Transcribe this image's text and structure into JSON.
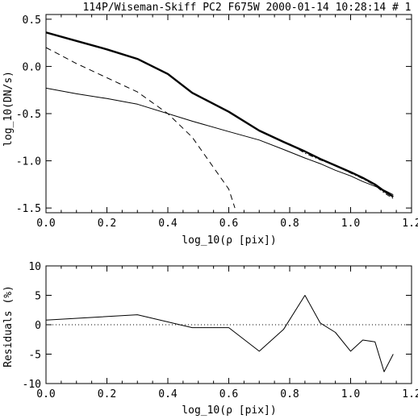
{
  "chart_data": [
    {
      "type": "line",
      "title": "114P/Wiseman-Skiff PC2 F675W 2000-01-14 10:28:14 # 1",
      "xlabel": "log_10(ρ [pix])",
      "ylabel": "log_10(DN/s)",
      "xlim": [
        0.0,
        1.2
      ],
      "ylim": [
        -1.55,
        0.55
      ],
      "xticks": [
        0.0,
        0.2,
        0.4,
        0.6,
        0.8,
        1.0,
        1.2
      ],
      "xtick_labels": [
        "0.0",
        "0.2",
        "0.4",
        "0.6",
        "0.8",
        "1.0",
        "1.2"
      ],
      "yticks": [
        -1.5,
        -1.0,
        -0.5,
        0.0,
        0.5
      ],
      "ytick_labels": [
        "-1.5",
        "-1.0",
        "-0.5",
        "0.0",
        "0.5"
      ],
      "grid": false,
      "series": [
        {
          "style": "thick-solid",
          "x": [
            0.0,
            0.1,
            0.2,
            0.3,
            0.4,
            0.48,
            0.6,
            0.7,
            0.78,
            0.85,
            0.9,
            0.95,
            1.0,
            1.04,
            1.08,
            1.11,
            1.14
          ],
          "y": [
            0.36,
            0.27,
            0.18,
            0.08,
            -0.08,
            -0.28,
            -0.48,
            -0.68,
            -0.8,
            -0.9,
            -0.98,
            -1.05,
            -1.12,
            -1.18,
            -1.25,
            -1.32,
            -1.38
          ]
        },
        {
          "style": "dashed",
          "x": [
            0.0,
            0.1,
            0.2,
            0.3,
            0.4,
            0.48,
            0.6,
            0.62
          ],
          "y": [
            0.2,
            0.03,
            -0.12,
            -0.27,
            -0.5,
            -0.75,
            -1.3,
            -1.5
          ]
        },
        {
          "style": "thin-solid",
          "x": [
            0.0,
            0.1,
            0.2,
            0.3,
            0.48,
            0.6,
            0.7,
            0.78,
            0.85,
            0.9,
            0.95,
            1.0,
            1.04,
            1.08,
            1.11,
            1.14
          ],
          "y": [
            -0.23,
            -0.29,
            -0.34,
            -0.4,
            -0.58,
            -0.69,
            -0.78,
            -0.88,
            -0.97,
            -1.03,
            -1.1,
            -1.16,
            -1.22,
            -1.27,
            -1.31,
            -1.36
          ]
        },
        {
          "style": "dash-dot",
          "x": [
            0.8,
            0.85,
            0.9,
            0.95,
            1.0,
            1.04,
            1.08,
            1.11,
            1.14
          ],
          "y": [
            -0.82,
            -0.92,
            -0.99,
            -1.05,
            -1.13,
            -1.19,
            -1.26,
            -1.34,
            -1.4
          ]
        }
      ]
    },
    {
      "type": "line",
      "title": "",
      "xlabel": "log_10(ρ [pix])",
      "ylabel": "Residuals (%)",
      "xlim": [
        0.0,
        1.2
      ],
      "ylim": [
        -10,
        10
      ],
      "xticks": [
        0.0,
        0.2,
        0.4,
        0.6,
        0.8,
        1.0,
        1.2
      ],
      "xtick_labels": [
        "0.0",
        "0.2",
        "0.4",
        "0.6",
        "0.8",
        "1.0",
        "1.2"
      ],
      "yticks": [
        -10,
        -5,
        0,
        5,
        10
      ],
      "ytick_labels": [
        "-10",
        "-5",
        "0",
        "5",
        "10"
      ],
      "grid": false,
      "reference_line": {
        "y": 0,
        "style": "dotted"
      },
      "series": [
        {
          "style": "thin-solid",
          "x": [
            0.0,
            0.3,
            0.48,
            0.6,
            0.7,
            0.78,
            0.85,
            0.9,
            0.95,
            1.0,
            1.04,
            1.08,
            1.11,
            1.14
          ],
          "y": [
            0.8,
            1.7,
            -0.5,
            -0.5,
            -4.5,
            -0.8,
            5.0,
            0.3,
            -1.3,
            -4.5,
            -2.6,
            -2.9,
            -8.0,
            -5.0
          ]
        }
      ]
    }
  ]
}
